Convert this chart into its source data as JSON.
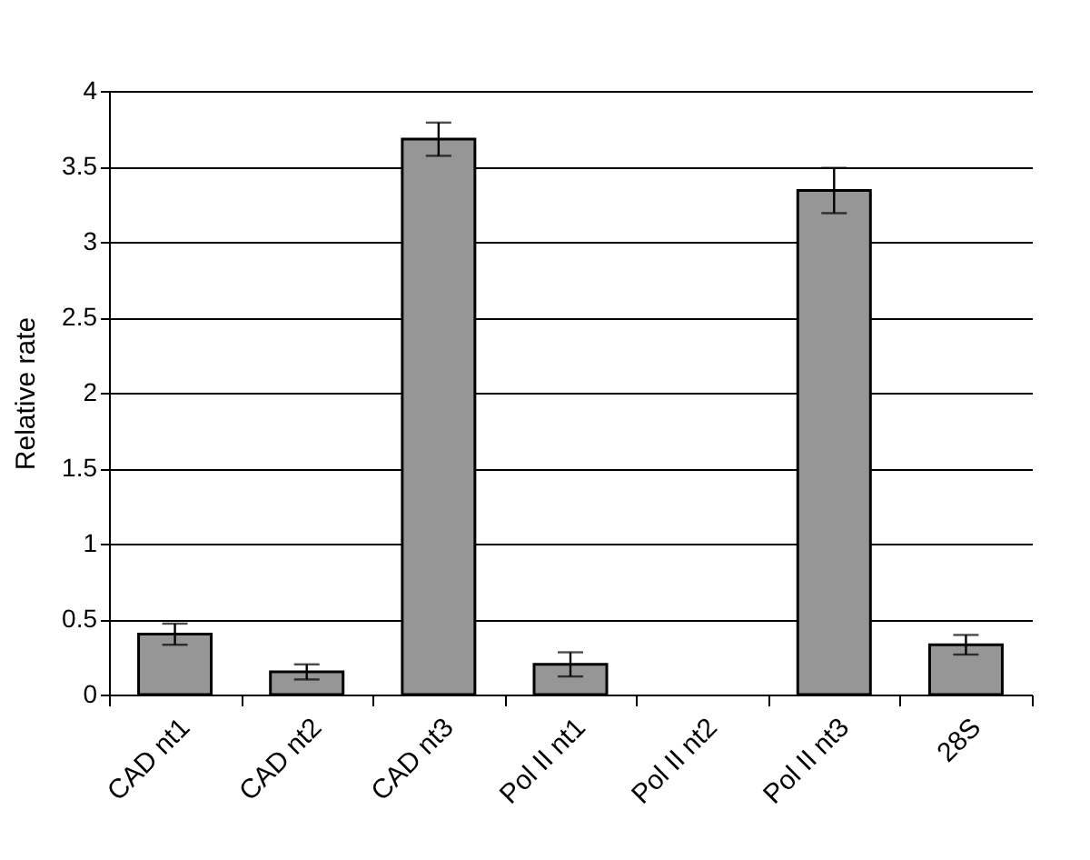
{
  "chart_data": {
    "type": "bar",
    "ylabel": "Relative rate",
    "categories": [
      "CAD nt1",
      "CAD nt2",
      "CAD nt3",
      "Pol II nt1",
      "Pol II nt2",
      "Pol II nt3",
      "28S"
    ],
    "series": [
      {
        "color": "#969696",
        "values": [
          0.4,
          0.15,
          3.68,
          0.2,
          null,
          3.34,
          0.33
        ],
        "errors": [
          0.07,
          0.05,
          0.11,
          0.08,
          null,
          0.15,
          0.065
        ]
      }
    ],
    "ylim": [
      0,
      4
    ],
    "yticks": [
      0,
      0.5,
      1,
      1.5,
      2,
      2.5,
      3,
      3.5,
      4
    ],
    "grid": "y"
  }
}
